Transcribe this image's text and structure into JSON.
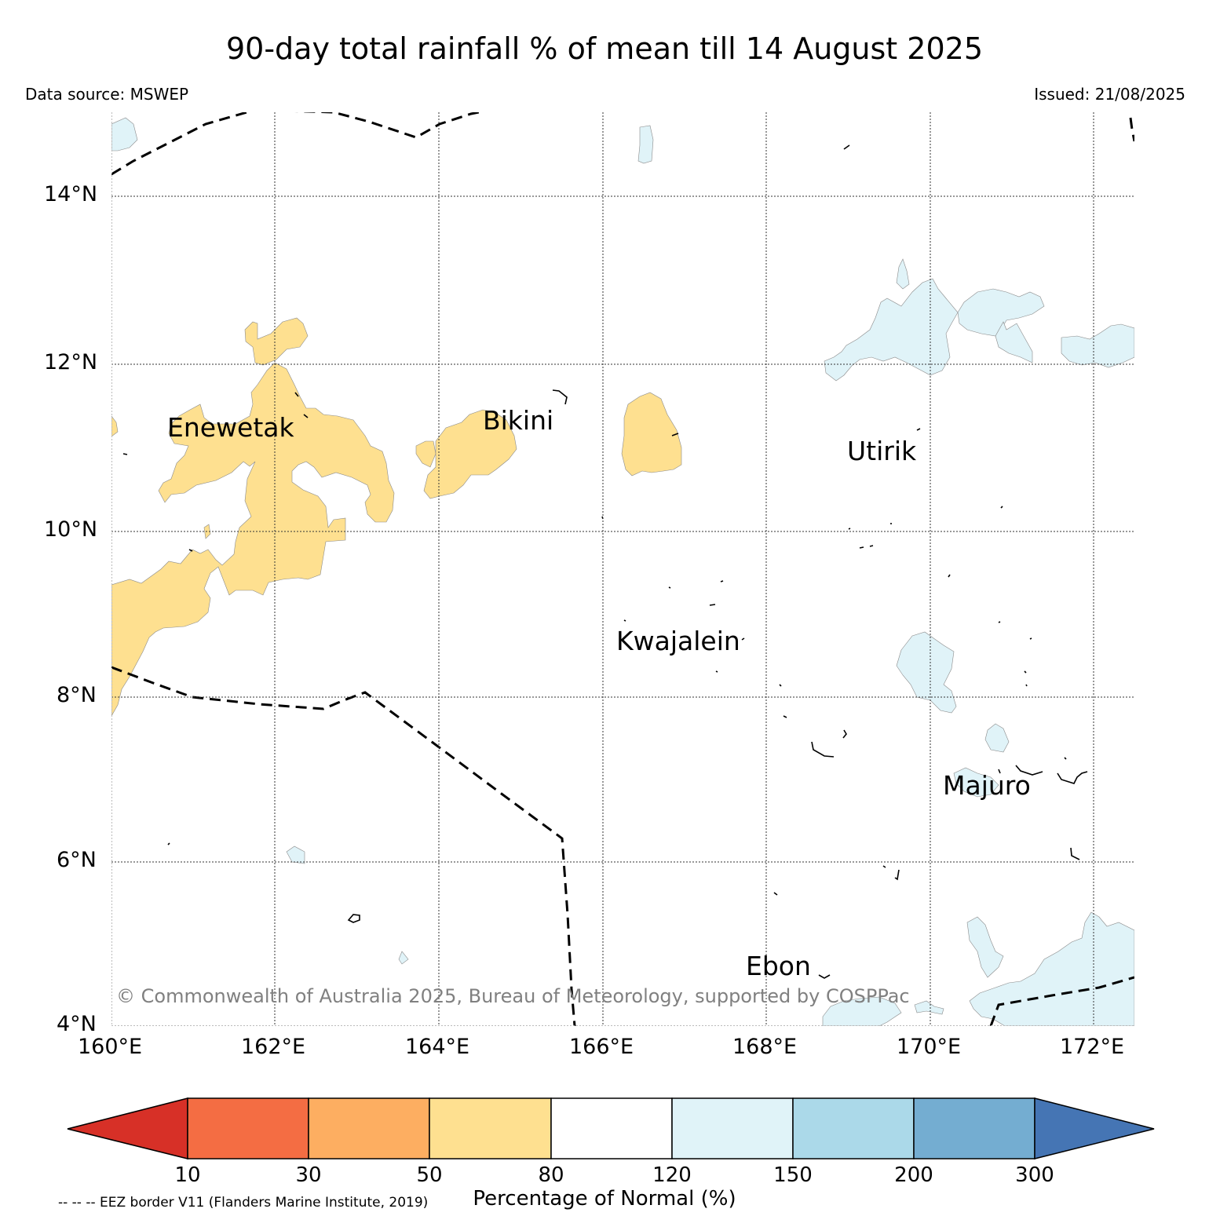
{
  "title": "90-day total rainfall % of mean till 14 August 2025",
  "data_source": "Data source: MSWEP",
  "issued": "Issued: 21/08/2025",
  "copyright": "© Commonwealth of Australia 2025, Bureau of Meteorology, supported by COSPPac",
  "map": {
    "lon_range": [
      160,
      172.5
    ],
    "lat_range": [
      4,
      14.95
    ],
    "lon_ticks": [
      "160°E",
      "162°E",
      "164°E",
      "166°E",
      "168°E",
      "170°E",
      "172°E"
    ],
    "lat_ticks": [
      "14°N",
      "12°N",
      "10°N",
      "8°N",
      "6°N",
      "4°N"
    ],
    "places": [
      {
        "name": "Enewetak",
        "lon": 160.7,
        "lat": 11.2
      },
      {
        "name": "Bikini",
        "lon": 164.55,
        "lat": 11.35
      },
      {
        "name": "Utirik",
        "lon": 169.0,
        "lat": 10.95
      },
      {
        "name": "Kwajalein",
        "lon": 166.2,
        "lat": 8.65
      },
      {
        "name": "Majuro",
        "lon": 170.15,
        "lat": 6.95
      },
      {
        "name": "Ebon",
        "lon": 167.8,
        "lat": 4.7
      }
    ]
  },
  "legend": {
    "label": "Percentage of Normal (%)",
    "ticks": [
      "10",
      "30",
      "50",
      "80",
      "120",
      "150",
      "200",
      "300"
    ],
    "colors": [
      "#d73027",
      "#f46d43",
      "#fdae61",
      "#fee090",
      "#ffffff",
      "#e0f3f8",
      "#abd9e9",
      "#74add1",
      "#4575b4"
    ]
  },
  "footnote": "-- -- -- EEZ border V11 (Flanders Marine Institute, 2019)"
}
